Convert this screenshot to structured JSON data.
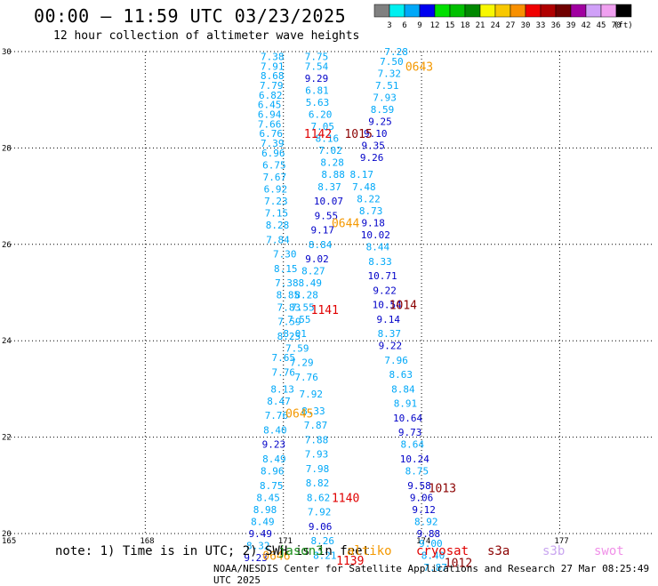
{
  "header": {
    "title": "00:00 — 11:59 UTC 03/23/2025",
    "subtitle": "12 hour collection of altimeter wave heights"
  },
  "footer": {
    "note": "note: 1) Time is in UTC; 2) SWH is in feet",
    "credit": "NOAA/NESDIS Center for Satellite Applications and Research   27 Mar 08:25:49 UTC 2025",
    "satellites": [
      {
        "name": "jason3",
        "color": "#1a8f1a"
      },
      {
        "name": "altiko",
        "color": "#f49800"
      },
      {
        "name": "cryosat",
        "color": "#e00000"
      },
      {
        "name": "s3a",
        "color": "#8b0000"
      },
      {
        "name": "s3b",
        "color": "#c9a6f0"
      },
      {
        "name": "swot",
        "color": "#f090e8"
      }
    ]
  },
  "legend": {
    "unit": "(ft)",
    "bins": [
      {
        "label": "3",
        "color": "#808080"
      },
      {
        "label": "6",
        "color": "#00f0f0"
      },
      {
        "label": "9",
        "color": "#00a8f8"
      },
      {
        "label": "12",
        "color": "#0000f0"
      },
      {
        "label": "15",
        "color": "#00e000"
      },
      {
        "label": "18",
        "color": "#00c000"
      },
      {
        "label": "21",
        "color": "#008800"
      },
      {
        "label": "24",
        "color": "#f8f800"
      },
      {
        "label": "27",
        "color": "#f8c800"
      },
      {
        "label": "30",
        "color": "#f89000"
      },
      {
        "label": "33",
        "color": "#f00000"
      },
      {
        "label": "36",
        "color": "#b00000"
      },
      {
        "label": "39",
        "color": "#700000"
      },
      {
        "label": "42",
        "color": "#a000a0"
      },
      {
        "label": "45",
        "color": "#d0a0f8"
      },
      {
        "label": "70",
        "color": "#f0a0f0"
      },
      {
        "label": "",
        "color": "#000000"
      }
    ]
  },
  "chart_data": {
    "type": "scatter",
    "title": "00:00 — 11:59 UTC 03/23/2025",
    "subtitle": "12 hour collection of altimeter wave heights",
    "xlim": [
      165,
      179
    ],
    "ylim": [
      20,
      30
    ],
    "x_ticks": [
      165,
      168,
      171,
      174,
      177
    ],
    "y_ticks": [
      20,
      22,
      24,
      26,
      28,
      30
    ],
    "y_tick_labels": [
      "20",
      "22",
      "24",
      "26",
      "28",
      "30"
    ],
    "grid": true,
    "colors": {
      "light": "#00a8f8",
      "dark": "#0000c8"
    },
    "points": [
      {
        "x": 170.76,
        "y": 29.9,
        "v": "7.38",
        "c": "l"
      },
      {
        "x": 170.76,
        "y": 29.7,
        "v": "7.91",
        "c": "l"
      },
      {
        "x": 170.76,
        "y": 29.5,
        "v": "8.68",
        "c": "l"
      },
      {
        "x": 170.74,
        "y": 29.3,
        "v": "7.79",
        "c": "l"
      },
      {
        "x": 170.72,
        "y": 29.1,
        "v": "6.82",
        "c": "l"
      },
      {
        "x": 170.7,
        "y": 28.9,
        "v": "6.45",
        "c": "l"
      },
      {
        "x": 170.7,
        "y": 28.7,
        "v": "6.94",
        "c": "l"
      },
      {
        "x": 170.7,
        "y": 28.5,
        "v": "7.66",
        "c": "l"
      },
      {
        "x": 170.73,
        "y": 28.3,
        "v": "6.76",
        "c": "l"
      },
      {
        "x": 170.76,
        "y": 28.1,
        "v": "7.39",
        "c": "l"
      },
      {
        "x": 170.78,
        "y": 27.9,
        "v": "6.96",
        "c": "l"
      },
      {
        "x": 170.8,
        "y": 27.65,
        "v": "6.75",
        "c": "l"
      },
      {
        "x": 170.81,
        "y": 27.4,
        "v": "7.67",
        "c": "l"
      },
      {
        "x": 170.83,
        "y": 27.15,
        "v": "6.92",
        "c": "l"
      },
      {
        "x": 170.84,
        "y": 26.9,
        "v": "7.23",
        "c": "l"
      },
      {
        "x": 170.85,
        "y": 26.65,
        "v": "7.15",
        "c": "l"
      },
      {
        "x": 170.87,
        "y": 26.4,
        "v": "8.28",
        "c": "l"
      },
      {
        "x": 170.88,
        "y": 26.1,
        "v": "7.84",
        "c": "l"
      },
      {
        "x": 171.03,
        "y": 25.8,
        "v": "7.30",
        "c": "l"
      },
      {
        "x": 171.05,
        "y": 25.5,
        "v": "8.15",
        "c": "l"
      },
      {
        "x": 171.07,
        "y": 25.2,
        "v": "7.38",
        "c": "l"
      },
      {
        "x": 171.1,
        "y": 24.95,
        "v": "8.85",
        "c": "l"
      },
      {
        "x": 171.12,
        "y": 24.7,
        "v": "7.83",
        "c": "l"
      },
      {
        "x": 171.13,
        "y": 24.4,
        "v": "7.59",
        "c": "l"
      },
      {
        "x": 171.12,
        "y": 24.1,
        "v": "8.25",
        "c": "l"
      },
      {
        "x": 171.0,
        "y": 23.65,
        "v": "7.65",
        "c": "l"
      },
      {
        "x": 171.0,
        "y": 23.35,
        "v": "7.76",
        "c": "l"
      },
      {
        "x": 170.98,
        "y": 23.0,
        "v": "8.13",
        "c": "l"
      },
      {
        "x": 170.9,
        "y": 22.75,
        "v": "8.47",
        "c": "l"
      },
      {
        "x": 170.85,
        "y": 22.45,
        "v": "7.76",
        "c": "l"
      },
      {
        "x": 170.82,
        "y": 22.15,
        "v": "8.40",
        "c": "l"
      },
      {
        "x": 170.79,
        "y": 21.85,
        "v": "9.23",
        "c": "d"
      },
      {
        "x": 170.8,
        "y": 21.55,
        "v": "8.49",
        "c": "l"
      },
      {
        "x": 170.76,
        "y": 21.3,
        "v": "8.96",
        "c": "l"
      },
      {
        "x": 170.74,
        "y": 21.0,
        "v": "8.75",
        "c": "l"
      },
      {
        "x": 170.67,
        "y": 20.75,
        "v": "8.45",
        "c": "l"
      },
      {
        "x": 170.6,
        "y": 20.5,
        "v": "8.98",
        "c": "l"
      },
      {
        "x": 170.55,
        "y": 20.25,
        "v": "8.49",
        "c": "l"
      },
      {
        "x": 170.5,
        "y": 20.0,
        "v": "9.49",
        "c": "d"
      },
      {
        "x": 170.45,
        "y": 19.75,
        "v": "8.32",
        "c": "l"
      },
      {
        "x": 170.4,
        "y": 19.5,
        "v": "9.23",
        "c": "d"
      },
      {
        "x": 171.72,
        "y": 29.9,
        "v": "7.75",
        "c": "l"
      },
      {
        "x": 171.72,
        "y": 29.7,
        "v": "7.54",
        "c": "l"
      },
      {
        "x": 171.72,
        "y": 29.45,
        "v": "9.29",
        "c": "d"
      },
      {
        "x": 171.73,
        "y": 29.2,
        "v": "6.81",
        "c": "l"
      },
      {
        "x": 171.74,
        "y": 28.95,
        "v": "5.63",
        "c": "l"
      },
      {
        "x": 171.8,
        "y": 28.7,
        "v": "6.20",
        "c": "l"
      },
      {
        "x": 171.85,
        "y": 28.45,
        "v": "7.05",
        "c": "l"
      },
      {
        "x": 171.95,
        "y": 28.2,
        "v": "8.16",
        "c": "l"
      },
      {
        "x": 172.02,
        "y": 27.95,
        "v": "7.02",
        "c": "l"
      },
      {
        "x": 172.06,
        "y": 27.7,
        "v": "8.28",
        "c": "l"
      },
      {
        "x": 172.08,
        "y": 27.45,
        "v": "8.88",
        "c": "l"
      },
      {
        "x": 172.0,
        "y": 27.2,
        "v": "8.37",
        "c": "l"
      },
      {
        "x": 171.98,
        "y": 26.9,
        "v": "10.07",
        "c": "d"
      },
      {
        "x": 171.93,
        "y": 26.6,
        "v": "9.55",
        "c": "d"
      },
      {
        "x": 171.85,
        "y": 26.3,
        "v": "9.17",
        "c": "d"
      },
      {
        "x": 171.8,
        "y": 26.0,
        "v": "8.84",
        "c": "l"
      },
      {
        "x": 171.73,
        "y": 25.7,
        "v": "9.02",
        "c": "d"
      },
      {
        "x": 171.65,
        "y": 25.45,
        "v": "8.27",
        "c": "l"
      },
      {
        "x": 171.58,
        "y": 25.2,
        "v": "8.49",
        "c": "l"
      },
      {
        "x": 171.5,
        "y": 24.95,
        "v": "8.28",
        "c": "l"
      },
      {
        "x": 171.42,
        "y": 24.7,
        "v": "7.55",
        "c": "l"
      },
      {
        "x": 171.34,
        "y": 24.45,
        "v": "7.55",
        "c": "l"
      },
      {
        "x": 171.25,
        "y": 24.15,
        "v": "8.01",
        "c": "l"
      },
      {
        "x": 171.3,
        "y": 23.85,
        "v": "7.59",
        "c": "l"
      },
      {
        "x": 171.4,
        "y": 23.55,
        "v": "7.29",
        "c": "l"
      },
      {
        "x": 171.5,
        "y": 23.25,
        "v": "7.76",
        "c": "l"
      },
      {
        "x": 171.6,
        "y": 22.9,
        "v": "7.92",
        "c": "l"
      },
      {
        "x": 171.65,
        "y": 22.55,
        "v": "8.33",
        "c": "l"
      },
      {
        "x": 171.7,
        "y": 22.25,
        "v": "7.87",
        "c": "l"
      },
      {
        "x": 171.72,
        "y": 21.95,
        "v": "7.88",
        "c": "l"
      },
      {
        "x": 171.72,
        "y": 21.65,
        "v": "7.93",
        "c": "l"
      },
      {
        "x": 171.74,
        "y": 21.35,
        "v": "7.98",
        "c": "l"
      },
      {
        "x": 171.74,
        "y": 21.05,
        "v": "8.82",
        "c": "l"
      },
      {
        "x": 171.76,
        "y": 20.75,
        "v": "8.62",
        "c": "l"
      },
      {
        "x": 171.78,
        "y": 20.45,
        "v": "7.92",
        "c": "l"
      },
      {
        "x": 171.8,
        "y": 20.15,
        "v": "9.06",
        "c": "d"
      },
      {
        "x": 171.85,
        "y": 19.85,
        "v": "8.26",
        "c": "l"
      },
      {
        "x": 171.9,
        "y": 19.55,
        "v": "8.21",
        "c": "l"
      },
      {
        "x": 173.45,
        "y": 30.0,
        "v": "7.28",
        "c": "l"
      },
      {
        "x": 173.35,
        "y": 29.8,
        "v": "7.50",
        "c": "l"
      },
      {
        "x": 173.3,
        "y": 29.55,
        "v": "7.32",
        "c": "l"
      },
      {
        "x": 173.25,
        "y": 29.3,
        "v": "7.51",
        "c": "l"
      },
      {
        "x": 173.2,
        "y": 29.05,
        "v": "7.93",
        "c": "l"
      },
      {
        "x": 173.15,
        "y": 28.8,
        "v": "8.59",
        "c": "l"
      },
      {
        "x": 173.1,
        "y": 28.55,
        "v": "9.25",
        "c": "d"
      },
      {
        "x": 173.0,
        "y": 28.3,
        "v": "9.10",
        "c": "d"
      },
      {
        "x": 172.95,
        "y": 28.05,
        "v": "9.35",
        "c": "d"
      },
      {
        "x": 172.92,
        "y": 27.8,
        "v": "9.26",
        "c": "d"
      },
      {
        "x": 172.7,
        "y": 27.45,
        "v": "8.17",
        "c": "l"
      },
      {
        "x": 172.75,
        "y": 27.2,
        "v": "7.48",
        "c": "l"
      },
      {
        "x": 172.85,
        "y": 26.95,
        "v": "8.22",
        "c": "l"
      },
      {
        "x": 172.9,
        "y": 26.7,
        "v": "8.73",
        "c": "l"
      },
      {
        "x": 172.95,
        "y": 26.45,
        "v": "9.18",
        "c": "d"
      },
      {
        "x": 173.0,
        "y": 26.2,
        "v": "10.02",
        "c": "d"
      },
      {
        "x": 173.05,
        "y": 25.95,
        "v": "8.44",
        "c": "l"
      },
      {
        "x": 173.1,
        "y": 25.65,
        "v": "8.33",
        "c": "l"
      },
      {
        "x": 173.15,
        "y": 25.35,
        "v": "10.71",
        "c": "d"
      },
      {
        "x": 173.2,
        "y": 25.05,
        "v": "9.22",
        "c": "d"
      },
      {
        "x": 173.25,
        "y": 24.75,
        "v": "10.54",
        "c": "d"
      },
      {
        "x": 173.28,
        "y": 24.45,
        "v": "9.14",
        "c": "d"
      },
      {
        "x": 173.3,
        "y": 24.15,
        "v": "8.37",
        "c": "l"
      },
      {
        "x": 173.32,
        "y": 23.9,
        "v": "9.22",
        "c": "d"
      },
      {
        "x": 173.45,
        "y": 23.6,
        "v": "7.96",
        "c": "l"
      },
      {
        "x": 173.55,
        "y": 23.3,
        "v": "8.63",
        "c": "l"
      },
      {
        "x": 173.6,
        "y": 23.0,
        "v": "8.84",
        "c": "l"
      },
      {
        "x": 173.65,
        "y": 22.7,
        "v": "8.91",
        "c": "l"
      },
      {
        "x": 173.7,
        "y": 22.4,
        "v": "10.64",
        "c": "d"
      },
      {
        "x": 173.75,
        "y": 22.1,
        "v": "9.73",
        "c": "d"
      },
      {
        "x": 173.8,
        "y": 21.85,
        "v": "8.64",
        "c": "l"
      },
      {
        "x": 173.85,
        "y": 21.55,
        "v": "10.24",
        "c": "d"
      },
      {
        "x": 173.9,
        "y": 21.3,
        "v": "8.75",
        "c": "l"
      },
      {
        "x": 173.95,
        "y": 21.0,
        "v": "9.58",
        "c": "d"
      },
      {
        "x": 174.0,
        "y": 20.75,
        "v": "9.06",
        "c": "d"
      },
      {
        "x": 174.05,
        "y": 20.5,
        "v": "9.12",
        "c": "d"
      },
      {
        "x": 174.1,
        "y": 20.25,
        "v": "8.92",
        "c": "l"
      },
      {
        "x": 174.15,
        "y": 20.0,
        "v": "9.88",
        "c": "d"
      },
      {
        "x": 174.2,
        "y": 19.8,
        "v": "9.00",
        "c": "l"
      },
      {
        "x": 174.25,
        "y": 19.55,
        "v": "8.40",
        "c": "l"
      },
      {
        "x": 174.3,
        "y": 19.3,
        "v": "7.87",
        "c": "l"
      }
    ],
    "pass_labels": [
      {
        "x": 173.95,
        "y": 29.7,
        "text": "0643",
        "color": "#f49800"
      },
      {
        "x": 171.75,
        "y": 28.3,
        "text": "1142",
        "color": "#e00000"
      },
      {
        "x": 172.63,
        "y": 28.3,
        "text": "1015",
        "color": "#8b0000"
      },
      {
        "x": 172.35,
        "y": 26.45,
        "text": "0644",
        "color": "#f49800"
      },
      {
        "x": 171.9,
        "y": 24.65,
        "text": "1141",
        "color": "#e00000"
      },
      {
        "x": 173.6,
        "y": 24.75,
        "text": "1014",
        "color": "#8b0000"
      },
      {
        "x": 171.35,
        "y": 22.5,
        "text": "0645",
        "color": "#f49800"
      },
      {
        "x": 172.35,
        "y": 20.75,
        "text": "1140",
        "color": "#e00000"
      },
      {
        "x": 174.45,
        "y": 20.95,
        "text": "1013",
        "color": "#8b0000"
      },
      {
        "x": 170.85,
        "y": 19.55,
        "text": "0646",
        "color": "#f49800"
      },
      {
        "x": 172.45,
        "y": 19.45,
        "text": "1139",
        "color": "#e00000"
      },
      {
        "x": 174.8,
        "y": 19.4,
        "text": "1012",
        "color": "#8b0000"
      }
    ]
  }
}
